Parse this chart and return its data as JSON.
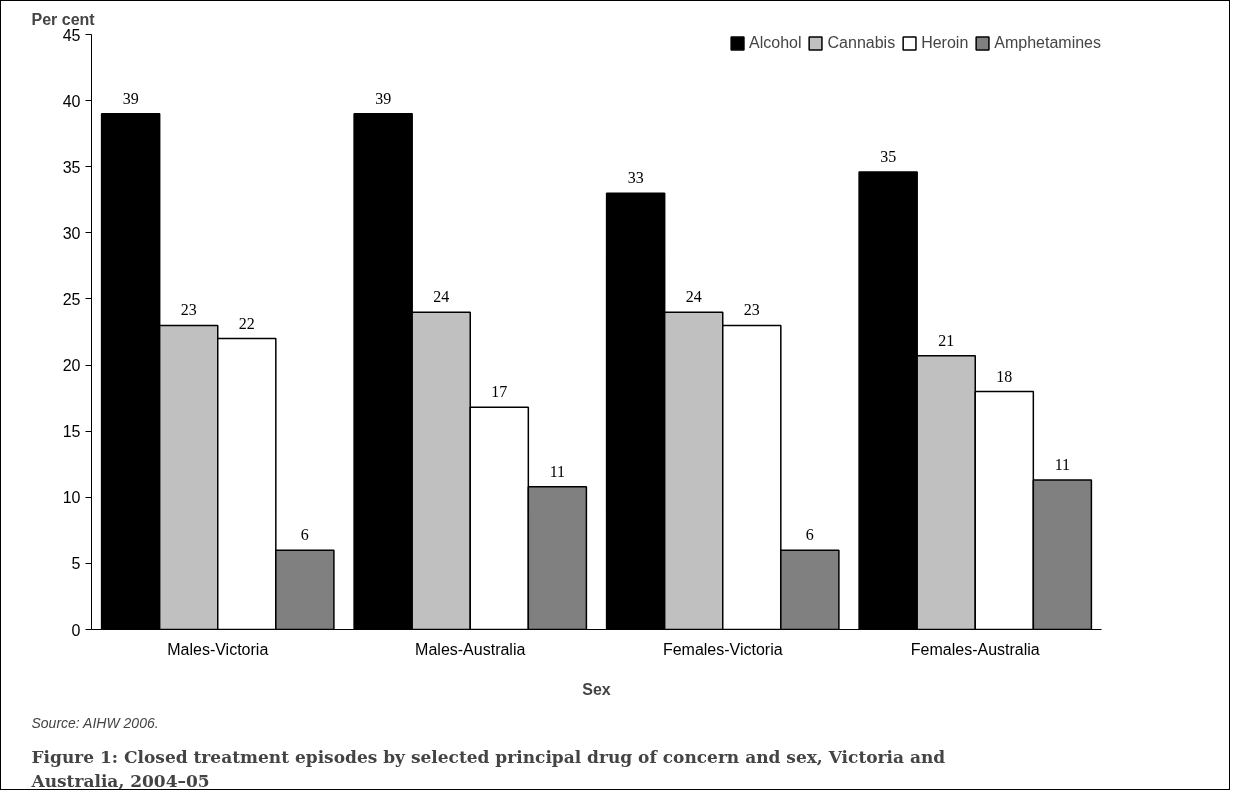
{
  "chart_data": {
    "type": "bar",
    "title": "Figure 1: Closed treatment episodes by selected principal drug of concern and sex, Victoria and Australia, 2004–05",
    "xlabel": "Sex",
    "ylabel": "Per cent",
    "annotations": [
      "Source: AIHW 2006."
    ],
    "categories": [
      "Males-Victoria",
      "Males-Australia",
      "Females-Victoria",
      "Females-Australia"
    ],
    "series": [
      {
        "name": "Alcohol",
        "color": "#000000",
        "values": [
          39,
          39,
          33,
          34.6
        ],
        "value_labels": [
          "39",
          "39",
          "33",
          "35"
        ]
      },
      {
        "name": "Cannabis",
        "color": "#c0c0c0",
        "values": [
          23,
          24,
          24,
          20.7
        ],
        "value_labels": [
          "23",
          "24",
          "24",
          "21"
        ]
      },
      {
        "name": "Heroin",
        "color": "#ffffff",
        "values": [
          22,
          16.8,
          23,
          18
        ],
        "value_labels": [
          "22",
          "17",
          "23",
          "18"
        ]
      },
      {
        "name": "Amphetamines",
        "color": "#808080",
        "values": [
          6,
          10.8,
          6,
          11.3
        ],
        "value_labels": [
          "6",
          "11",
          "6",
          "11"
        ]
      }
    ],
    "ylim": [
      0,
      45
    ],
    "yticks": [
      0,
      5,
      10,
      15,
      20,
      25,
      30,
      35,
      40,
      45
    ],
    "legend": "top right",
    "grid": false
  }
}
